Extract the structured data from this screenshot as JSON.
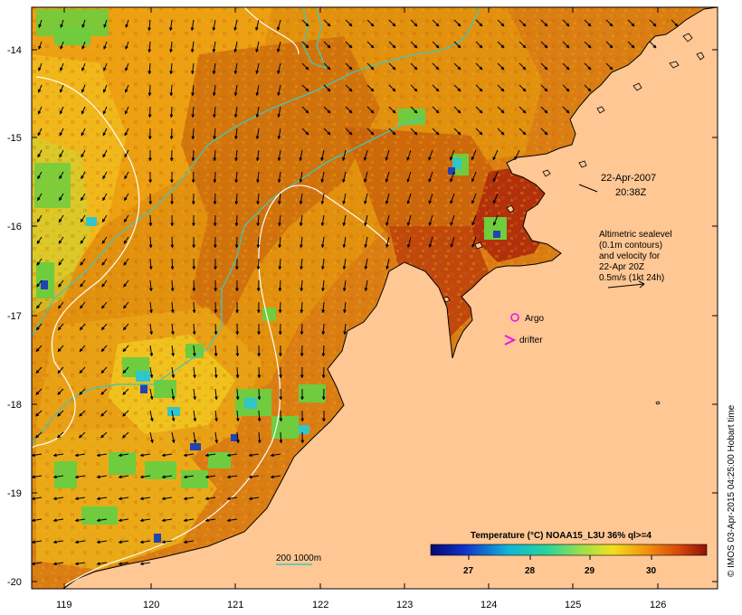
{
  "map": {
    "date": "22-Apr-2007",
    "time": "20:38Z",
    "altimetry_note": [
      "Altimetric sealevel",
      "(0.1m contours)",
      "and velocity for",
      "22-Apr 20Z",
      "0.5m/s (1kt 24h)"
    ],
    "legend_argo": "Argo",
    "legend_drifter": "drifter",
    "isobath_label": "200  1000m",
    "colorbar_title": "Temperature (°C) NOAA15_L3U 36% ql>=4",
    "colorbar_ticks": [
      "27",
      "28",
      "29",
      "30"
    ],
    "credit": "© IMOS 03-Apr-2015 04:25:00 Hobart time",
    "lat_ticks": [
      "-14",
      "-15",
      "-16",
      "-17",
      "-18",
      "-19",
      "-20"
    ],
    "lon_ticks": [
      "119",
      "120",
      "121",
      "122",
      "123",
      "124",
      "125",
      "126"
    ],
    "colors": {
      "land": "#fec794",
      "sst_warm": "#d3700c",
      "sst_hot": "#a8200a",
      "sst_mid": "#e79812",
      "sst_cool": "#f2c21d",
      "green": "#73cf3a",
      "cyan": "#21c7c1",
      "blue": "#2146b8",
      "contour_white": "#ffffff",
      "isobath_cyan": "#41c7b9",
      "marker_magenta": "#ee10ee"
    }
  }
}
